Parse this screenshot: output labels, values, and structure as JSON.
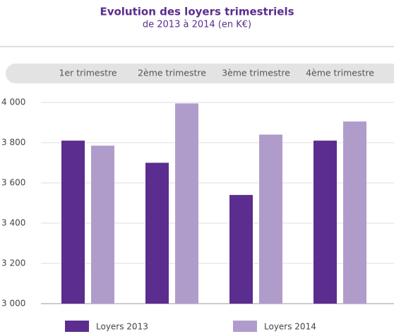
{
  "chart_data": {
    "type": "bar",
    "title": "Evolution des loyers trimestriels",
    "subtitle": "de 2013 à 2014 (en K€)",
    "categories": [
      "1er trimestre",
      "2ème trimestre",
      "3ème trimestre",
      "4ème trimestre"
    ],
    "series": [
      {
        "name": "Loyers 2013",
        "color": "#5b2d8e",
        "values": [
          3810,
          3700,
          3540,
          3810
        ]
      },
      {
        "name": "Loyers 2014",
        "color": "#b09ccb",
        "values": [
          3785,
          3995,
          3840,
          3905
        ]
      }
    ],
    "ylim": [
      3000,
      4000
    ],
    "yticks": [
      {
        "value": 3000,
        "label": "3 000"
      },
      {
        "value": 3200,
        "label": "3 200"
      },
      {
        "value": 3400,
        "label": "3 400"
      },
      {
        "value": 3600,
        "label": "3 600"
      },
      {
        "value": 3800,
        "label": "3 800"
      },
      {
        "value": 4000,
        "label": "4 000"
      }
    ],
    "grid": true
  }
}
